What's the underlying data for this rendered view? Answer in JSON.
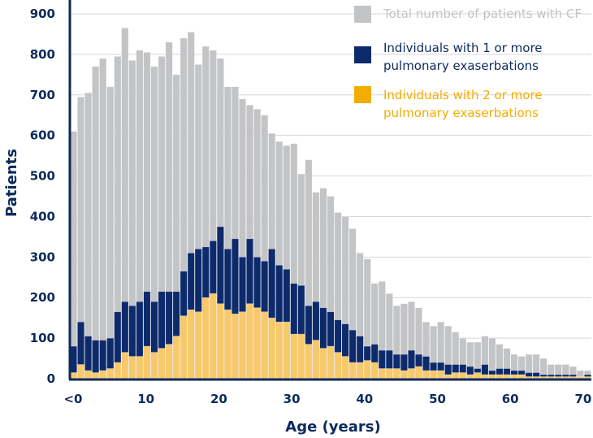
{
  "chart_data": {
    "type": "bar",
    "layout": "overlapping",
    "xlabel": "Age (years)",
    "ylabel": "Patients",
    "ylim": [
      0,
      900
    ],
    "y_ticks": [
      "0",
      "100",
      "200",
      "300",
      "400",
      "500",
      "600",
      "700",
      "800",
      "900"
    ],
    "x_ticks": [
      {
        "value": 0,
        "label": "<0"
      },
      {
        "value": 10,
        "label": "10"
      },
      {
        "value": 20,
        "label": "20"
      },
      {
        "value": 30,
        "label": "30"
      },
      {
        "value": 40,
        "label": "40"
      },
      {
        "value": 50,
        "label": "50"
      },
      {
        "value": 60,
        "label": "60"
      },
      {
        "value": 70,
        "label": "70"
      }
    ],
    "categories": [
      0,
      1,
      2,
      3,
      4,
      5,
      6,
      7,
      8,
      9,
      10,
      11,
      12,
      13,
      14,
      15,
      16,
      17,
      18,
      19,
      20,
      21,
      22,
      23,
      24,
      25,
      26,
      27,
      28,
      29,
      30,
      31,
      32,
      33,
      34,
      35,
      36,
      37,
      38,
      39,
      40,
      41,
      42,
      43,
      44,
      45,
      46,
      47,
      48,
      49,
      50,
      51,
      52,
      53,
      54,
      55,
      56,
      57,
      58,
      59,
      60,
      61,
      62,
      63,
      64,
      65,
      66,
      67,
      68,
      69,
      70
    ],
    "series": [
      {
        "name": "Total number of patients with CF",
        "color": "#c3c4c6",
        "values": [
          610,
          695,
          705,
          770,
          790,
          720,
          795,
          865,
          785,
          810,
          805,
          770,
          795,
          830,
          750,
          840,
          855,
          775,
          820,
          810,
          790,
          720,
          720,
          690,
          675,
          665,
          650,
          605,
          585,
          575,
          580,
          505,
          540,
          460,
          470,
          450,
          410,
          400,
          370,
          310,
          295,
          235,
          240,
          210,
          180,
          185,
          190,
          175,
          140,
          130,
          140,
          130,
          115,
          100,
          90,
          90,
          105,
          100,
          85,
          75,
          60,
          55,
          60,
          60,
          50,
          35,
          35,
          35,
          30,
          20,
          20
        ]
      },
      {
        "name": "Individuals with 1 or more pulmonary exaserbations",
        "color": "#0d2a6b",
        "values": [
          80,
          140,
          105,
          95,
          95,
          100,
          165,
          190,
          180,
          190,
          215,
          190,
          215,
          215,
          215,
          265,
          310,
          320,
          325,
          340,
          375,
          320,
          345,
          300,
          345,
          300,
          290,
          320,
          280,
          270,
          235,
          230,
          180,
          190,
          175,
          165,
          145,
          135,
          120,
          105,
          80,
          85,
          70,
          70,
          60,
          60,
          70,
          60,
          55,
          40,
          40,
          35,
          35,
          35,
          30,
          25,
          35,
          20,
          25,
          25,
          20,
          20,
          15,
          15,
          10,
          10,
          10,
          10,
          10,
          5,
          10
        ]
      },
      {
        "name": "Individuals with 2 or more pulmonary exaserbations",
        "color": "#f8c96b",
        "values": [
          15,
          35,
          20,
          15,
          20,
          25,
          40,
          65,
          55,
          55,
          80,
          65,
          75,
          85,
          105,
          155,
          170,
          165,
          200,
          210,
          185,
          170,
          160,
          165,
          185,
          175,
          165,
          150,
          140,
          140,
          110,
          110,
          85,
          95,
          75,
          80,
          65,
          55,
          40,
          40,
          45,
          40,
          25,
          25,
          25,
          20,
          25,
          30,
          20,
          20,
          20,
          10,
          15,
          15,
          10,
          15,
          10,
          10,
          10,
          10,
          10,
          10,
          5,
          5,
          5,
          5,
          5,
          5,
          5,
          5,
          5
        ]
      }
    ],
    "legend": [
      {
        "label": "Total number of patients with CF",
        "swatch": "#c3c4c6",
        "text_color": "#c3c4c6",
        "lines": [
          "Total number of patients with CF"
        ]
      },
      {
        "label": "Individuals with 1 or more pulmonary exaserbations",
        "swatch": "#0d2a6b",
        "text_color": "#0d2a5c",
        "lines": [
          "Individuals with 1 or more",
          "pulmonary exaserbations"
        ]
      },
      {
        "label": "Individuals with 2 or more pulmonary exaserbations",
        "swatch": "#f2ad00",
        "text_color": "#f2ad00",
        "lines": [
          "Individuals with 2 or more",
          "pulmonary exaserbations"
        ]
      }
    ],
    "legend_position": "top-right",
    "grid": true,
    "axis_color": "#0d2a5c"
  }
}
